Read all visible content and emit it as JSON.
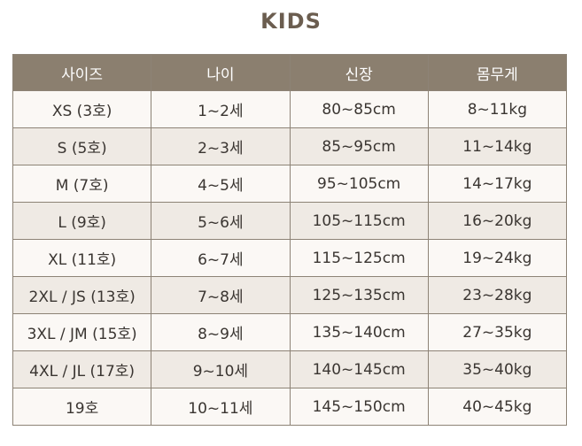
{
  "title": "KIDS",
  "table": {
    "headers": [
      "사이즈",
      "나이",
      "신장",
      "몸무게"
    ],
    "rows": [
      [
        "XS (3호)",
        "1~2세",
        "80~85cm",
        "8~11kg"
      ],
      [
        "S (5호)",
        "2~3세",
        "85~95cm",
        "11~14kg"
      ],
      [
        "M (7호)",
        "4~5세",
        "95~105cm",
        "14~17kg"
      ],
      [
        "L (9호)",
        "5~6세",
        "105~115cm",
        "16~20kg"
      ],
      [
        "XL (11호)",
        "6~7세",
        "115~125cm",
        "19~24kg"
      ],
      [
        "2XL / JS (13호)",
        "7~8세",
        "125~135cm",
        "23~28kg"
      ],
      [
        "3XL / JM (15호)",
        "8~9세",
        "135~140cm",
        "27~35kg"
      ],
      [
        "4XL / JL (17호)",
        "9~10세",
        "140~145cm",
        "35~40kg"
      ],
      [
        "19호",
        "10~11세",
        "145~150cm",
        "40~45kg"
      ]
    ]
  },
  "colors": {
    "title": "#6b5d4f",
    "header_bg": "#8b7f6f",
    "header_text": "#ffffff",
    "row_light": "#fbf8f5",
    "row_dark": "#efeae4",
    "border": "#8d8376",
    "cell_text": "#3a3531"
  }
}
